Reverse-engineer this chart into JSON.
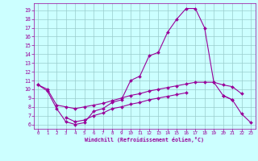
{
  "x": [
    0,
    1,
    2,
    3,
    4,
    5,
    6,
    7,
    8,
    9,
    10,
    11,
    12,
    13,
    14,
    15,
    16,
    17,
    18,
    19,
    20,
    21,
    22,
    23
  ],
  "line_peak": [
    10.5,
    9.8,
    7.8,
    6.3,
    6.0,
    6.2,
    7.5,
    7.8,
    8.5,
    8.8,
    11.0,
    11.5,
    13.8,
    14.2,
    16.5,
    18.0,
    19.2,
    19.2,
    17.0,
    10.8,
    9.3,
    8.8,
    7.2,
    6.2
  ],
  "line_mid": [
    10.5,
    10.0,
    8.2,
    8.0,
    7.8,
    8.0,
    8.2,
    8.4,
    8.7,
    9.0,
    9.3,
    9.5,
    9.8,
    10.0,
    10.2,
    10.4,
    10.6,
    10.8,
    10.8,
    10.8,
    10.5,
    10.3,
    9.5,
    null
  ],
  "line_low": [
    null,
    null,
    null,
    6.8,
    6.3,
    6.5,
    7.0,
    7.3,
    7.8,
    8.0,
    8.3,
    8.5,
    8.8,
    9.0,
    9.2,
    9.4,
    9.6,
    null,
    null,
    null,
    9.3,
    8.8,
    null,
    null
  ],
  "xlabel": "Windchill (Refroidissement éolien,°C)",
  "xlim": [
    -0.5,
    23.5
  ],
  "ylim": [
    5.5,
    19.8
  ],
  "yticks": [
    6,
    7,
    8,
    9,
    10,
    11,
    12,
    13,
    14,
    15,
    16,
    17,
    18,
    19
  ],
  "xticks": [
    0,
    1,
    2,
    3,
    4,
    5,
    6,
    7,
    8,
    9,
    10,
    11,
    12,
    13,
    14,
    15,
    16,
    17,
    18,
    19,
    20,
    21,
    22,
    23
  ],
  "line_color": "#990099",
  "bg_color": "#ccffff",
  "grid_color": "#99cccc"
}
